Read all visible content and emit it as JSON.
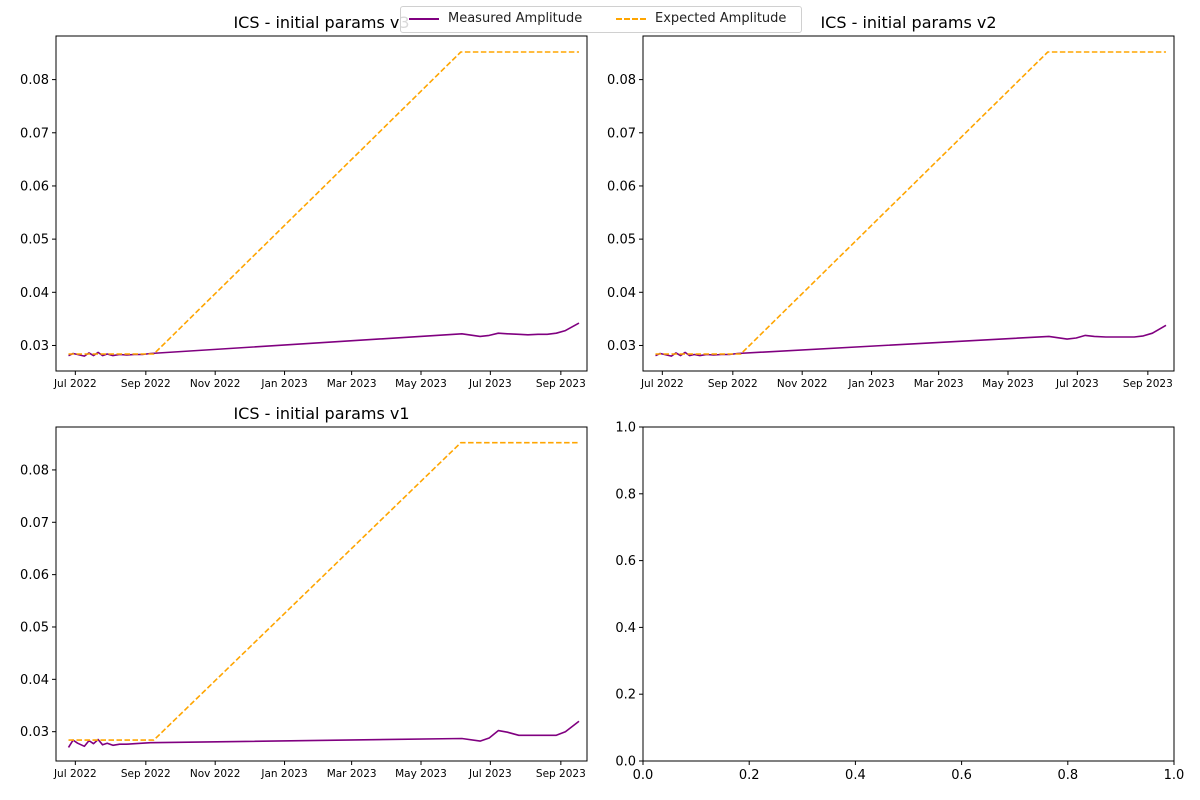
{
  "legend": {
    "measured_label": "Measured Amplitude",
    "expected_label": "Expected Amplitude",
    "measured_color": "#800080",
    "expected_color": "#FFA500"
  },
  "chart_data": [
    {
      "type": "line",
      "title": "ICS - initial params v3",
      "xlabel": "",
      "ylabel": "",
      "xlim": [
        "2022-06-14",
        "2023-09-24"
      ],
      "ylim": [
        0.0252,
        0.0882
      ],
      "xticks": [
        "Jul 2022",
        "Sep 2022",
        "Nov 2022",
        "Jan 2023",
        "Mar 2023",
        "May 2023",
        "Jul 2023",
        "Sep 2023"
      ],
      "yticks": [
        0.03,
        0.04,
        0.05,
        0.06,
        0.07,
        0.08
      ],
      "grid": false,
      "series": [
        {
          "name": "Measured Amplitude",
          "color": "#800080",
          "style": "solid",
          "x": [
            "2022-06-25",
            "2022-06-29",
            "2022-07-03",
            "2022-07-09",
            "2022-07-13",
            "2022-07-17",
            "2022-07-21",
            "2022-07-25",
            "2022-07-29",
            "2022-08-03",
            "2022-08-09",
            "2022-08-15",
            "2022-08-22",
            "2022-08-29",
            "2022-09-05",
            "2023-06-06",
            "2023-06-22",
            "2023-06-30",
            "2023-07-08",
            "2023-07-16",
            "2023-07-26",
            "2023-08-03",
            "2023-08-12",
            "2023-08-20",
            "2023-08-28",
            "2023-09-05",
            "2023-09-17"
          ],
          "y": [
            0.0281,
            0.0285,
            0.0283,
            0.028,
            0.0286,
            0.0281,
            0.0287,
            0.0281,
            0.0284,
            0.0281,
            0.0283,
            0.0282,
            0.0283,
            0.0283,
            0.0285,
            0.0322,
            0.0317,
            0.0319,
            0.0323,
            0.0322,
            0.0321,
            0.032,
            0.0321,
            0.0321,
            0.0323,
            0.0328,
            0.0342
          ]
        },
        {
          "name": "Expected Amplitude",
          "color": "#FFA500",
          "style": "dashed",
          "x": [
            "2022-06-25",
            "2022-09-08",
            "2023-06-05",
            "2023-09-17"
          ],
          "y": [
            0.0284,
            0.0284,
            0.0852,
            0.0852
          ]
        }
      ]
    },
    {
      "type": "line",
      "title": "ICS - initial params v2",
      "xlabel": "",
      "ylabel": "",
      "xlim": [
        "2022-06-14",
        "2023-09-24"
      ],
      "ylim": [
        0.0252,
        0.0882
      ],
      "xticks": [
        "Jul 2022",
        "Sep 2022",
        "Nov 2022",
        "Jan 2023",
        "Mar 2023",
        "May 2023",
        "Jul 2023",
        "Sep 2023"
      ],
      "yticks": [
        0.03,
        0.04,
        0.05,
        0.06,
        0.07,
        0.08
      ],
      "grid": false,
      "series": [
        {
          "name": "Measured Amplitude",
          "color": "#800080",
          "style": "solid",
          "x": [
            "2022-06-25",
            "2022-06-29",
            "2022-07-03",
            "2022-07-09",
            "2022-07-13",
            "2022-07-17",
            "2022-07-21",
            "2022-07-25",
            "2022-07-29",
            "2022-08-03",
            "2022-08-09",
            "2022-08-15",
            "2022-08-22",
            "2022-08-29",
            "2022-09-05",
            "2023-06-06",
            "2023-06-22",
            "2023-06-30",
            "2023-07-08",
            "2023-07-16",
            "2023-07-26",
            "2023-08-03",
            "2023-08-12",
            "2023-08-20",
            "2023-08-28",
            "2023-09-05",
            "2023-09-17"
          ],
          "y": [
            0.0281,
            0.0285,
            0.0283,
            0.028,
            0.0286,
            0.0281,
            0.0287,
            0.0281,
            0.0283,
            0.0281,
            0.0283,
            0.0282,
            0.0283,
            0.0283,
            0.0285,
            0.0317,
            0.0312,
            0.0314,
            0.0319,
            0.0317,
            0.0316,
            0.0316,
            0.0316,
            0.0316,
            0.0318,
            0.0323,
            0.0338
          ]
        },
        {
          "name": "Expected Amplitude",
          "color": "#FFA500",
          "style": "dashed",
          "x": [
            "2022-06-25",
            "2022-09-08",
            "2023-06-05",
            "2023-09-17"
          ],
          "y": [
            0.0284,
            0.0284,
            0.0852,
            0.0852
          ]
        }
      ]
    },
    {
      "type": "line",
      "title": "ICS - initial params v1",
      "xlabel": "",
      "ylabel": "",
      "xlim": [
        "2022-06-14",
        "2023-09-24"
      ],
      "ylim": [
        0.0244,
        0.0882
      ],
      "xticks": [
        "Jul 2022",
        "Sep 2022",
        "Nov 2022",
        "Jan 2023",
        "Mar 2023",
        "May 2023",
        "Jul 2023",
        "Sep 2023"
      ],
      "yticks": [
        0.03,
        0.04,
        0.05,
        0.06,
        0.07,
        0.08
      ],
      "grid": false,
      "series": [
        {
          "name": "Measured Amplitude",
          "color": "#800080",
          "style": "solid",
          "x": [
            "2022-06-25",
            "2022-06-29",
            "2022-07-03",
            "2022-07-09",
            "2022-07-13",
            "2022-07-17",
            "2022-07-21",
            "2022-07-25",
            "2022-07-29",
            "2022-08-03",
            "2022-08-09",
            "2022-08-15",
            "2022-08-22",
            "2022-08-29",
            "2022-09-05",
            "2023-06-06",
            "2023-06-22",
            "2023-06-30",
            "2023-07-08",
            "2023-07-16",
            "2023-07-26",
            "2023-08-03",
            "2023-08-12",
            "2023-08-20",
            "2023-08-28",
            "2023-09-05",
            "2023-09-17"
          ],
          "y": [
            0.027,
            0.0284,
            0.0278,
            0.0272,
            0.0283,
            0.0277,
            0.0285,
            0.0275,
            0.0278,
            0.0274,
            0.0276,
            0.0276,
            0.0277,
            0.0278,
            0.0279,
            0.0287,
            0.0282,
            0.0288,
            0.0302,
            0.0299,
            0.0293,
            0.0293,
            0.0293,
            0.0293,
            0.0293,
            0.03,
            0.032
          ]
        },
        {
          "name": "Expected Amplitude",
          "color": "#FFA500",
          "style": "dashed",
          "x": [
            "2022-06-25",
            "2022-09-08",
            "2023-06-05",
            "2023-09-17"
          ],
          "y": [
            0.0284,
            0.0284,
            0.0852,
            0.0852
          ]
        }
      ]
    },
    {
      "type": "line",
      "title": "",
      "xlabel": "",
      "ylabel": "",
      "xlim": [
        0,
        1
      ],
      "ylim": [
        0,
        1
      ],
      "xticks": [
        "0.0",
        "0.2",
        "0.4",
        "0.6",
        "0.8",
        "1.0"
      ],
      "yticks": [
        "0.0",
        "0.2",
        "0.4",
        "0.6",
        "0.8",
        "1.0"
      ],
      "grid": false,
      "series": []
    }
  ]
}
